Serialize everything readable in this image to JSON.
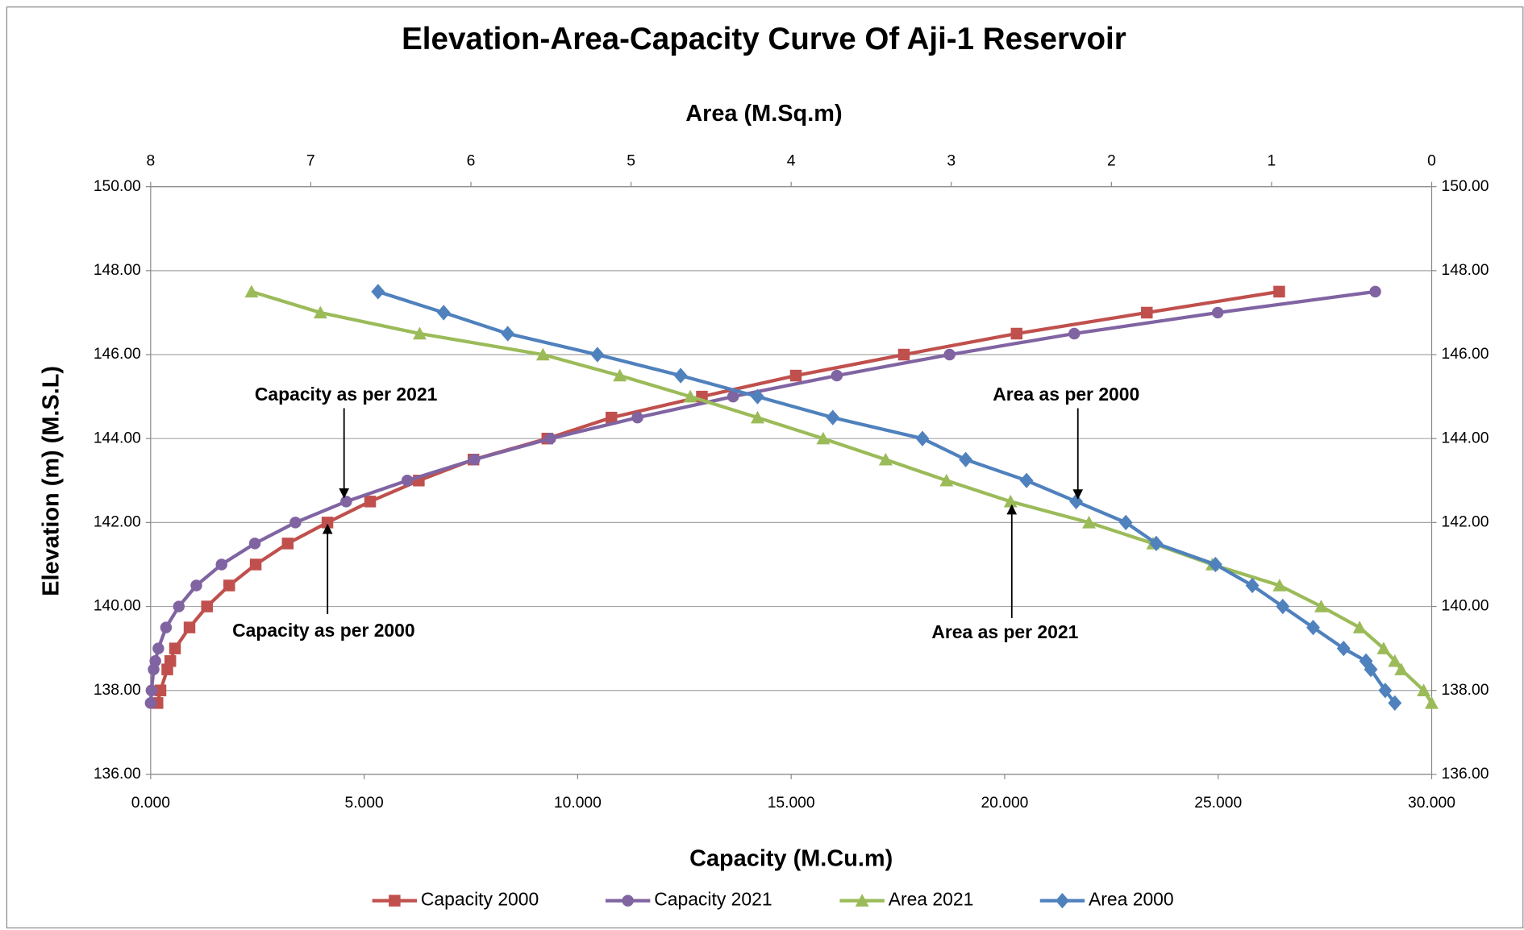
{
  "chart_data": {
    "type": "line",
    "title": "Elevation-Area-Capacity Curve Of Aji-1 Reservoir",
    "x_label": "Capacity (M.Cu.m)",
    "x2_label": "Area (M.Sq.m)",
    "y_label": "Elevation (m)  (M.S.L)",
    "grid": true,
    "legend": "bottom",
    "xlim": [
      0,
      30
    ],
    "xticks": [
      {
        "value": 0,
        "label": "0.000"
      },
      {
        "value": 5,
        "label": "5.000"
      },
      {
        "value": 10,
        "label": "10.000"
      },
      {
        "value": 15,
        "label": "15.000"
      },
      {
        "value": 20,
        "label": "20.000"
      },
      {
        "value": 25,
        "label": "25.000"
      },
      {
        "value": 30,
        "label": "30.000"
      }
    ],
    "x2lim": [
      8,
      0
    ],
    "x2ticks": [
      8,
      7,
      6,
      5,
      4,
      3,
      2,
      1,
      0
    ],
    "ylim": [
      136,
      150
    ],
    "yticks": [
      {
        "value": 136,
        "label": "136.00"
      },
      {
        "value": 138,
        "label": "138.00"
      },
      {
        "value": 140,
        "label": "140.00"
      },
      {
        "value": 142,
        "label": "142.00"
      },
      {
        "value": 144,
        "label": "144.00"
      },
      {
        "value": 146,
        "label": "146.00"
      },
      {
        "value": 148,
        "label": "148.00"
      },
      {
        "value": 150,
        "label": "150.00"
      }
    ],
    "y": [
      137.7,
      138,
      138.5,
      138.7,
      139,
      139.5,
      140,
      140.5,
      141,
      141.5,
      142,
      142.5,
      143,
      143.5,
      144,
      144.5,
      145,
      145.5,
      146,
      146.5,
      147,
      147.5
    ],
    "series": [
      {
        "name": "Capacity 2000",
        "color": "#c0504d",
        "marker": "square",
        "axis": "x",
        "x": [
          0.16,
          0.23,
          0.39,
          0.46,
          0.57,
          0.91,
          1.32,
          1.84,
          2.46,
          3.21,
          4.14,
          5.14,
          6.28,
          7.56,
          9.29,
          10.79,
          12.91,
          15.11,
          17.64,
          20.28,
          23.33,
          26.43
        ]
      },
      {
        "name": "Capacity 2021",
        "color": "#8064a2",
        "marker": "circle",
        "axis": "x",
        "x": [
          0.0,
          0.02,
          0.07,
          0.11,
          0.18,
          0.36,
          0.66,
          1.07,
          1.66,
          2.44,
          3.39,
          4.58,
          6.01,
          7.58,
          9.36,
          11.4,
          13.64,
          16.07,
          18.71,
          21.63,
          24.99,
          28.68
        ]
      },
      {
        "name": "Area 2021",
        "color": "#9bbb59",
        "marker": "triangle",
        "axis": "x2",
        "x": [
          0.0,
          0.05,
          0.19,
          0.23,
          0.3,
          0.45,
          0.69,
          0.95,
          1.37,
          1.74,
          2.14,
          2.63,
          3.03,
          3.41,
          3.8,
          4.21,
          4.63,
          5.07,
          5.55,
          6.32,
          6.94,
          7.37
        ]
      },
      {
        "name": "Area 2000",
        "color": "#4f81bd",
        "marker": "diamond",
        "axis": "x2",
        "x": [
          0.23,
          0.29,
          0.38,
          0.41,
          0.55,
          0.74,
          0.93,
          1.12,
          1.35,
          1.72,
          1.91,
          2.22,
          2.53,
          2.91,
          3.18,
          3.74,
          4.21,
          4.69,
          5.21,
          5.77,
          6.17,
          6.58
        ]
      }
    ],
    "annotations": [
      "Capacity as per 2021",
      "Capacity as per 2000",
      "Area as per 2000",
      "Area as per 2021"
    ]
  }
}
